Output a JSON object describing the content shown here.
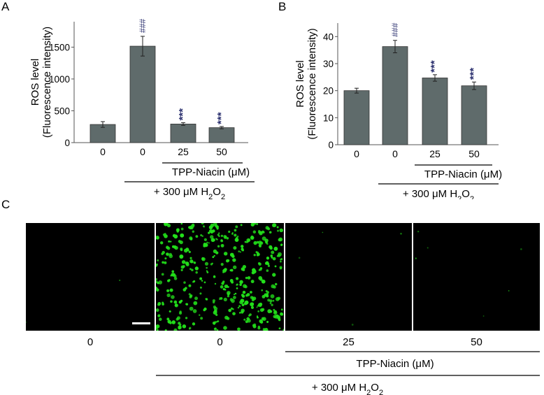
{
  "panels": {
    "a": {
      "letter": "A"
    },
    "b": {
      "letter": "B"
    },
    "c": {
      "letter": "C"
    }
  },
  "chart_data": [
    {
      "type": "bar",
      "panel": "A",
      "categories": [
        "0",
        "0",
        "25",
        "50"
      ],
      "values": [
        285,
        1515,
        292,
        235
      ],
      "errors": [
        45,
        155,
        22,
        18
      ],
      "significance": [
        "",
        "###",
        "***",
        "***"
      ],
      "ylabel": "ROS level",
      "ylabel2": "(Fluorescence intensity)",
      "ylim": [
        0,
        1900
      ],
      "yticks": [
        0,
        500,
        1000,
        1500
      ],
      "group_label": "TPP-Niacin (μM)",
      "treatment_label_prefix": "+ 300 μM H",
      "treatment_label_sub1": "2",
      "treatment_label_mid": "O",
      "treatment_label_sub2": "2",
      "bar_color": "#5f6b6b"
    },
    {
      "type": "bar",
      "panel": "B",
      "categories": [
        "0",
        "0",
        "25",
        "50"
      ],
      "values": [
        20.0,
        36.3,
        24.7,
        21.8
      ],
      "errors": [
        0.9,
        2.3,
        1.2,
        1.4
      ],
      "significance": [
        "",
        "###",
        "***",
        "***"
      ],
      "ylabel": "ROS level",
      "ylabel2": "(Fluorescence intensity)",
      "ylim": [
        0,
        45
      ],
      "yticks": [
        0,
        10,
        20,
        30,
        40
      ],
      "group_label": "TPP-Niacin (μM)",
      "treatment_label_prefix": "+ 300 μM H",
      "treatment_label_sub1": "2",
      "treatment_label_mid": "O",
      "treatment_label_sub2": "2",
      "bar_color": "#5f6b6b"
    }
  ],
  "micrographs": {
    "panels": [
      {
        "label": "0",
        "density": 0.006
      },
      {
        "label": "0",
        "density": 1.0
      },
      {
        "label": "25",
        "density": 0.012
      },
      {
        "label": "50",
        "density": 0.018
      }
    ],
    "group_label": "TPP-Niacin (μM)",
    "treatment_label_prefix": "+ 300 μM H",
    "treatment_label_sub1": "2",
    "treatment_label_mid": "O",
    "treatment_label_sub2": "2",
    "fluorescence_color": "#22e01a"
  }
}
